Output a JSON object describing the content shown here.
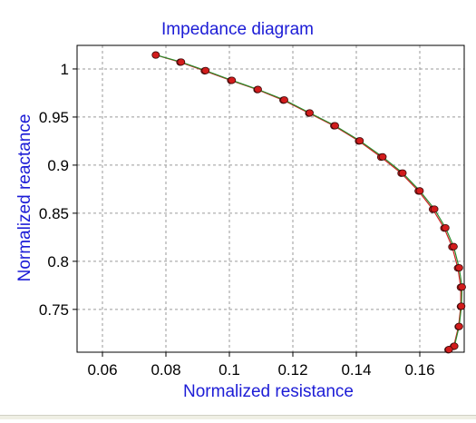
{
  "chart_data": {
    "type": "line",
    "title": "Impedance diagram",
    "xlabel": "Normalized resistance",
    "ylabel": "Normalized reactance",
    "xlim": [
      0.052,
      0.174
    ],
    "ylim": [
      0.7055,
      1.0245
    ],
    "x_ticks": [
      0.06,
      0.08,
      0.1,
      0.12,
      0.14,
      0.16
    ],
    "x_tick_labels": [
      "0.06",
      "0.08",
      "0.1",
      "0.12",
      "0.14",
      "0.16"
    ],
    "y_ticks": [
      0.75,
      0.8,
      0.85,
      0.9,
      0.95,
      1.0
    ],
    "y_tick_labels": [
      "0.75",
      "0.8",
      "0.85",
      "0.9",
      "0.95",
      "1"
    ],
    "grid": true,
    "series": [
      {
        "color": "#cc2222",
        "marker": "circle",
        "x": [
          0.0768,
          0.0845,
          0.0922,
          0.1005,
          0.1088,
          0.117,
          0.1251,
          0.133,
          0.1408,
          0.1478,
          0.1542,
          0.1596,
          0.1641,
          0.1677,
          0.1702,
          0.172,
          0.1729,
          0.1729,
          0.1722,
          0.1707,
          0.169
        ],
        "y": [
          1.0145,
          1.007,
          0.998,
          0.988,
          0.9785,
          0.9675,
          0.954,
          0.9408,
          0.925,
          0.9083,
          0.8915,
          0.873,
          0.854,
          0.8345,
          0.815,
          0.793,
          0.773,
          0.753,
          0.732,
          0.7115,
          0.708
        ]
      },
      {
        "color": "#2a8a2a",
        "marker": "circle",
        "x": [
          0.0768,
          0.0848,
          0.0925,
          0.1008,
          0.109,
          0.1173,
          0.1253,
          0.1333,
          0.1411,
          0.1483,
          0.1546,
          0.16,
          0.1646,
          0.1681,
          0.1707,
          0.1724,
          0.1733,
          0.1731,
          0.1724,
          0.1709,
          0.1692
        ],
        "y": [
          1.0145,
          1.0072,
          0.9983,
          0.9882,
          0.9787,
          0.9678,
          0.9543,
          0.941,
          0.9253,
          0.9086,
          0.8918,
          0.8733,
          0.8543,
          0.8348,
          0.8153,
          0.7933,
          0.7733,
          0.7533,
          0.7323,
          0.7118,
          0.7083
        ]
      }
    ]
  },
  "colors": {
    "title": "#1c1cd6",
    "axis_label": "#1c1cd6",
    "grid": "#9a9a9a"
  }
}
